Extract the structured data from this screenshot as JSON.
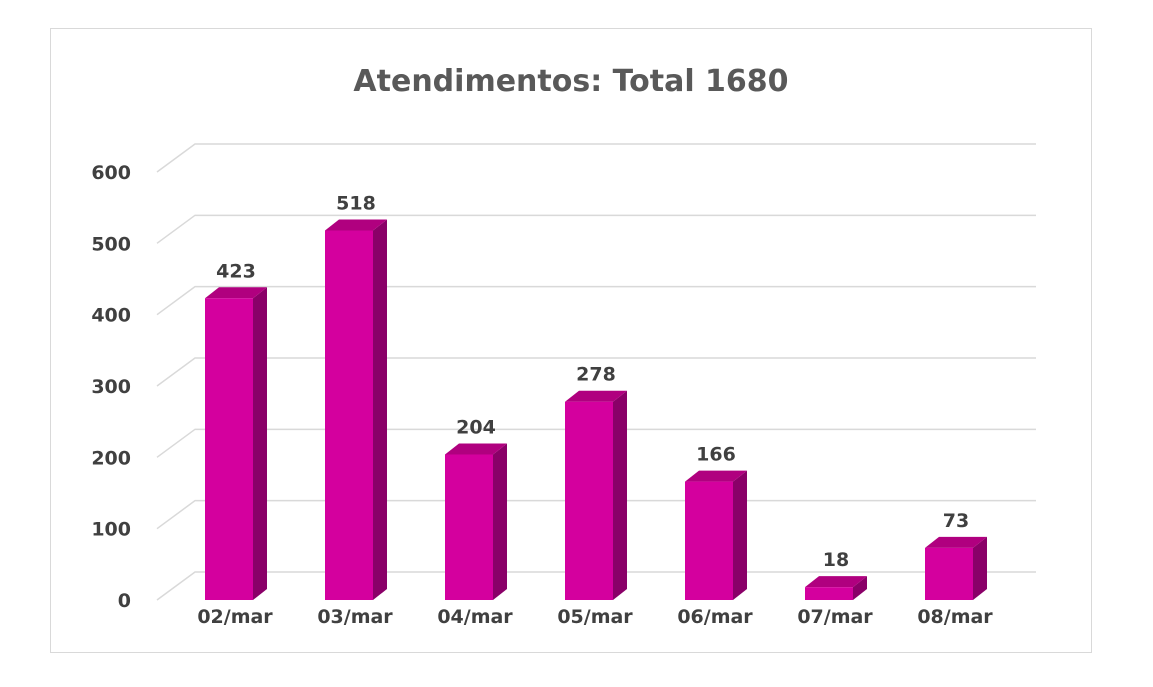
{
  "chart_data": {
    "type": "bar",
    "title": "Atendimentos: Total 1680",
    "categories": [
      "02/mar",
      "03/mar",
      "04/mar",
      "05/mar",
      "06/mar",
      "07/mar",
      "08/mar"
    ],
    "values": [
      423,
      518,
      204,
      278,
      166,
      18,
      73
    ],
    "ylim": [
      0,
      600
    ],
    "yticks": [
      "0",
      "100",
      "200",
      "300",
      "400",
      "500",
      "600"
    ],
    "grid": true,
    "legend": "none",
    "colors": {
      "bar_front": "#d4009e",
      "bar_side": "#8a0068",
      "bar_top": "#b0007f",
      "gridline": "#d9d9d9",
      "text": "#404040",
      "title": "#595959"
    }
  }
}
